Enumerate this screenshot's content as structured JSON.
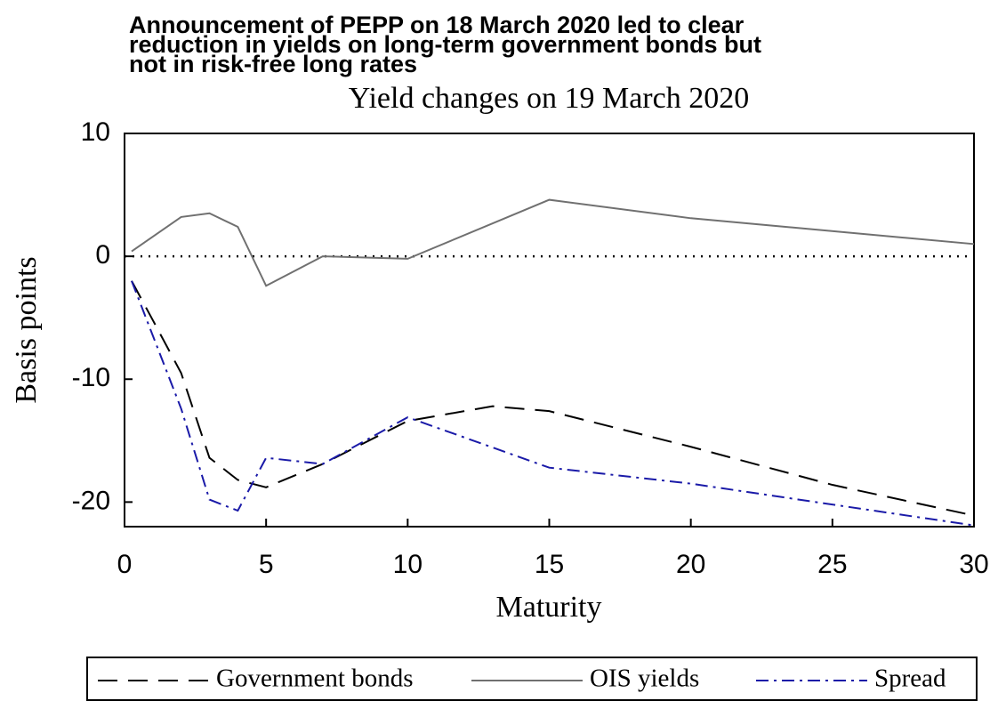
{
  "chart_data": {
    "type": "line",
    "title": "Announcement of PEPP on 18 March 2020 led to clear reduction in yields on long-term government bonds but not in risk-free long rates",
    "title_lines": [
      "Announcement of PEPP on 18 March 2020 led to clear",
      "reduction in yields on long-term government bonds but",
      "not in risk-free long rates"
    ],
    "subtitle": "Yield changes on 19 March 2020",
    "x_label": "Maturity",
    "y_label": "Basis points",
    "xlim": [
      0,
      30
    ],
    "xticks": [
      0,
      5,
      10,
      15,
      20,
      25,
      30
    ],
    "ylim": [
      -22,
      10
    ],
    "yticks": [
      -20,
      -10,
      0,
      10
    ],
    "series": [
      {
        "name": "Government bonds",
        "color": "#000000",
        "dash": "22 12",
        "x": [
          0.25,
          1,
          2,
          3,
          4,
          5,
          7,
          10,
          13,
          15,
          20,
          25,
          30
        ],
        "values": [
          -2,
          -5.2,
          -9.5,
          -16.4,
          -18.2,
          -18.8,
          -16.9,
          -13.4,
          -12.2,
          -12.6,
          -15.5,
          -18.6,
          -21.1
        ]
      },
      {
        "name": "OIS yields",
        "color": "#707070",
        "dash": "none",
        "x": [
          0.25,
          2,
          3,
          4,
          5,
          7,
          10,
          15,
          20,
          30
        ],
        "values": [
          0.4,
          3.2,
          3.5,
          2.4,
          -2.4,
          0,
          -0.2,
          4.6,
          3.1,
          1.0
        ]
      },
      {
        "name": "Spread",
        "color": "#1a1aa8",
        "dash": "14 6 3 6",
        "x": [
          0.25,
          2,
          3,
          4,
          5,
          7,
          10,
          15,
          20,
          30
        ],
        "values": [
          -2,
          -12.4,
          -19.8,
          -20.7,
          -16.4,
          -16.9,
          -13.1,
          -17.2,
          -18.5,
          -21.9
        ]
      }
    ]
  }
}
